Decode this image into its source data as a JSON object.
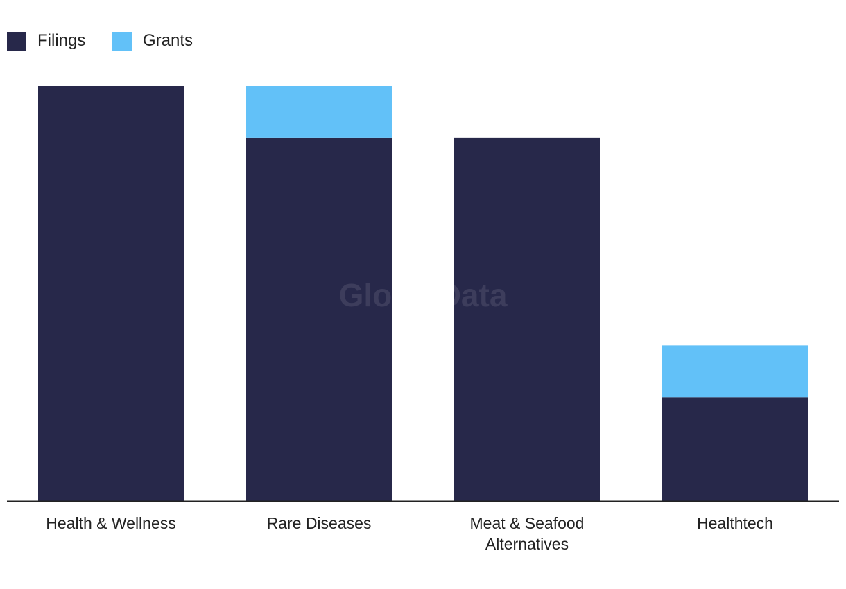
{
  "chart_data": {
    "type": "bar",
    "stacked": true,
    "categories": [
      "Health & Wellness",
      "Rare Diseases",
      "Meat & Seafood Alternatives",
      "Healthtech"
    ],
    "series": [
      {
        "name": "Filings",
        "color": "#27284a",
        "values": [
          8,
          7,
          7,
          2
        ]
      },
      {
        "name": "Grants",
        "color": "#62c1f8",
        "values": [
          0,
          1,
          0,
          1
        ]
      }
    ],
    "ylim": [
      0,
      8
    ],
    "grid": false,
    "legend_position": "top-left",
    "watermark": "GlobalData"
  }
}
